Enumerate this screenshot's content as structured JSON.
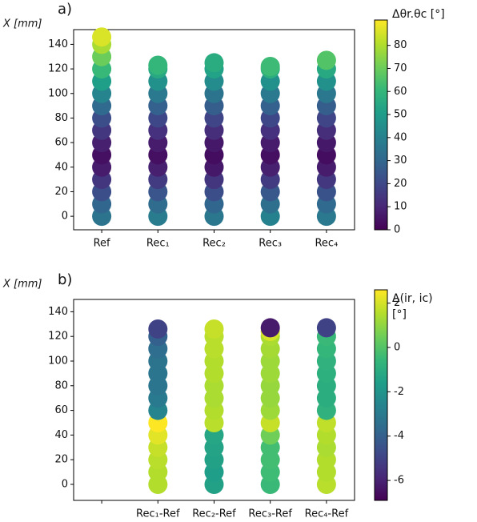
{
  "chart_data": [
    {
      "type": "scatter",
      "panel_label": "a)",
      "ylabel": "X [mm]",
      "categories": [
        "Ref",
        "Rec₁",
        "Rec₂",
        "Rec₃",
        "Rec₄"
      ],
      "ylim": [
        -11,
        152
      ],
      "yticks": [
        0,
        20,
        40,
        60,
        80,
        100,
        120,
        140
      ],
      "colormap": "viridis",
      "clim": [
        0,
        91
      ],
      "cticks": [
        0,
        10,
        20,
        30,
        40,
        50,
        60,
        70,
        80
      ],
      "colorbar_label": [
        "Δθr.θc [°]"
      ],
      "series": [
        {
          "positions": [
            0,
            10,
            20,
            30,
            40,
            50,
            60,
            70,
            80,
            90,
            100,
            110,
            120,
            130,
            140,
            146
          ],
          "values": [
            35,
            30,
            22,
            14,
            7,
            4,
            8,
            15,
            22,
            31,
            41,
            51,
            61,
            70,
            79,
            86
          ]
        },
        {
          "positions": [
            0,
            10,
            20,
            30,
            40,
            50,
            60,
            70,
            80,
            90,
            100,
            110,
            120,
            123
          ],
          "values": [
            38,
            32,
            24,
            16,
            8,
            4,
            7,
            13,
            20,
            28,
            37,
            46,
            55,
            60
          ]
        },
        {
          "positions": [
            0,
            10,
            20,
            30,
            40,
            50,
            60,
            70,
            80,
            90,
            100,
            110,
            120,
            125
          ],
          "values": [
            36,
            30,
            22,
            14,
            6,
            3,
            6,
            12,
            19,
            27,
            35,
            44,
            52,
            56
          ]
        },
        {
          "positions": [
            0,
            10,
            20,
            30,
            40,
            50,
            60,
            70,
            80,
            90,
            100,
            110,
            120,
            122
          ],
          "values": [
            40,
            33,
            25,
            16,
            8,
            4,
            7,
            13,
            20,
            28,
            37,
            46,
            57,
            62
          ]
        },
        {
          "positions": [
            0,
            10,
            20,
            30,
            40,
            50,
            60,
            70,
            80,
            90,
            100,
            110,
            120,
            127
          ],
          "values": [
            37,
            31,
            23,
            15,
            7,
            3,
            6,
            12,
            19,
            27,
            36,
            46,
            55,
            66
          ]
        }
      ]
    },
    {
      "type": "scatter",
      "panel_label": "b)",
      "ylabel": "X [mm]",
      "categories": [
        null,
        "Rec₁-Ref",
        "Rec₂-Ref",
        "Rec₃-Ref",
        "Rec₄-Ref"
      ],
      "ylim": [
        -13,
        150
      ],
      "yticks": [
        0,
        20,
        40,
        60,
        80,
        100,
        120,
        140
      ],
      "colormap": "viridis",
      "clim": [
        -6.9,
        2.6
      ],
      "cticks": [
        -6,
        -4,
        -2,
        0,
        2
      ],
      "colorbar_label": [
        "Δ(ir, ic)",
        "[°]"
      ],
      "series": [
        {
          "positions": [],
          "values": []
        },
        {
          "positions": [
            0,
            10,
            20,
            30,
            40,
            50,
            60,
            70,
            80,
            90,
            100,
            110,
            120,
            126
          ],
          "values": [
            1.5,
            1.5,
            1.6,
            1.8,
            2.2,
            2.6,
            -2.6,
            -3,
            -3.2,
            -3.2,
            -3.3,
            -3.5,
            -4,
            -5
          ]
        },
        {
          "positions": [
            0,
            10,
            20,
            30,
            40,
            50,
            60,
            70,
            80,
            90,
            100,
            110,
            120,
            126
          ],
          "values": [
            -1.5,
            -1.6,
            -1.5,
            -1.4,
            -1.3,
            1.6,
            1.5,
            1.4,
            1.4,
            1.5,
            1.5,
            1.6,
            1.6,
            1.8
          ]
        },
        {
          "positions": [
            0,
            10,
            20,
            30,
            40,
            50,
            60,
            70,
            80,
            90,
            100,
            110,
            120,
            124,
            127
          ],
          "values": [
            -0.5,
            -0.4,
            -0.3,
            -0.3,
            0.5,
            1.8,
            1.2,
            1.1,
            1.1,
            1.2,
            1.2,
            1.3,
            1.4,
            2.0,
            -6.2
          ]
        },
        {
          "positions": [
            0,
            10,
            20,
            30,
            40,
            50,
            60,
            70,
            80,
            90,
            100,
            110,
            120,
            127
          ],
          "values": [
            1.6,
            1.5,
            1.5,
            1.4,
            1.5,
            1.7,
            -0.8,
            -1,
            -1,
            -0.9,
            -0.8,
            -0.6,
            -0.5,
            -5
          ]
        }
      ]
    }
  ]
}
